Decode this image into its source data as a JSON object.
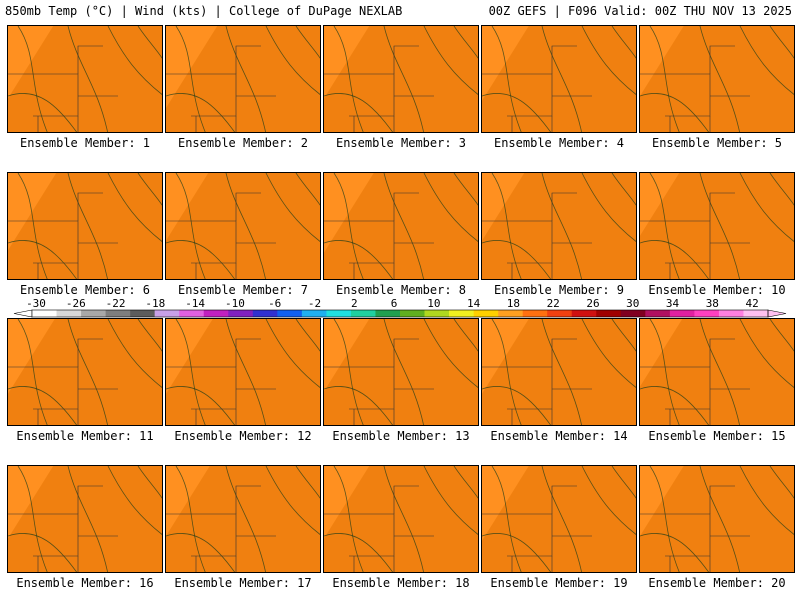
{
  "header": {
    "left": "850mb Temp (°C) | Wind (kts) | College of DuPage NEXLAB",
    "right": "00Z GEFS | F096 Valid: 00Z THU NOV 13 2025"
  },
  "panels": [
    {
      "label": "Ensemble Member: 1",
      "warmth": 0.55
    },
    {
      "label": "Ensemble Member: 2",
      "warmth": 0.75
    },
    {
      "label": "Ensemble Member: 3",
      "warmth": 0.55
    },
    {
      "label": "Ensemble Member: 4",
      "warmth": 0.6
    },
    {
      "label": "Ensemble Member: 5",
      "warmth": 0.5
    },
    {
      "label": "Ensemble Member: 6",
      "warmth": 0.65
    },
    {
      "label": "Ensemble Member: 7",
      "warmth": 0.45
    },
    {
      "label": "Ensemble Member: 8",
      "warmth": 0.7
    },
    {
      "label": "Ensemble Member: 9",
      "warmth": 0.45
    },
    {
      "label": "Ensemble Member: 10",
      "warmth": 0.35
    },
    {
      "label": "Ensemble Member: 11",
      "warmth": 0.6
    },
    {
      "label": "Ensemble Member: 12",
      "warmth": 0.6
    },
    {
      "label": "Ensemble Member: 13",
      "warmth": 0.55
    },
    {
      "label": "Ensemble Member: 14",
      "warmth": 0.6
    },
    {
      "label": "Ensemble Member: 15",
      "warmth": 0.45
    },
    {
      "label": "Ensemble Member: 16",
      "warmth": 0.55
    },
    {
      "label": "Ensemble Member: 17",
      "warmth": 0.5
    },
    {
      "label": "Ensemble Member: 18",
      "warmth": 0.55
    },
    {
      "label": "Ensemble Member: 19",
      "warmth": 0.6
    },
    {
      "label": "Ensemble Member: 20",
      "warmth": 0.5
    }
  ],
  "colorbar": {
    "ticks": [
      "-30",
      "-26",
      "-22",
      "-18",
      "-14",
      "-10",
      "-6",
      "-2",
      "2",
      "6",
      "10",
      "14",
      "18",
      "22",
      "26",
      "30",
      "34",
      "38",
      "42"
    ],
    "colors": [
      "#ffffff",
      "#d8d8d8",
      "#a8a8a8",
      "#7e7e7e",
      "#5c5c5c",
      "#c8a0e8",
      "#e060e0",
      "#c020c0",
      "#8020c0",
      "#3030d0",
      "#1060f0",
      "#20b0f0",
      "#20e0e0",
      "#20d0a0",
      "#20a050",
      "#60b020",
      "#b0d820",
      "#f0f020",
      "#ffd000",
      "#ffa020",
      "#ff7010",
      "#f04010",
      "#d01010",
      "#a00000",
      "#800020",
      "#b01060",
      "#e020a0",
      "#ff40c0",
      "#ff80e0",
      "#ffc0f0"
    ]
  },
  "bands": [
    "#f08010",
    "#ff9020",
    "#ffb020",
    "#ffd000",
    "#f0f020",
    "#b0d820",
    "#60b020",
    "#20a050",
    "#20c080",
    "#20d8d0",
    "#20b0f0",
    "#1060f0"
  ]
}
